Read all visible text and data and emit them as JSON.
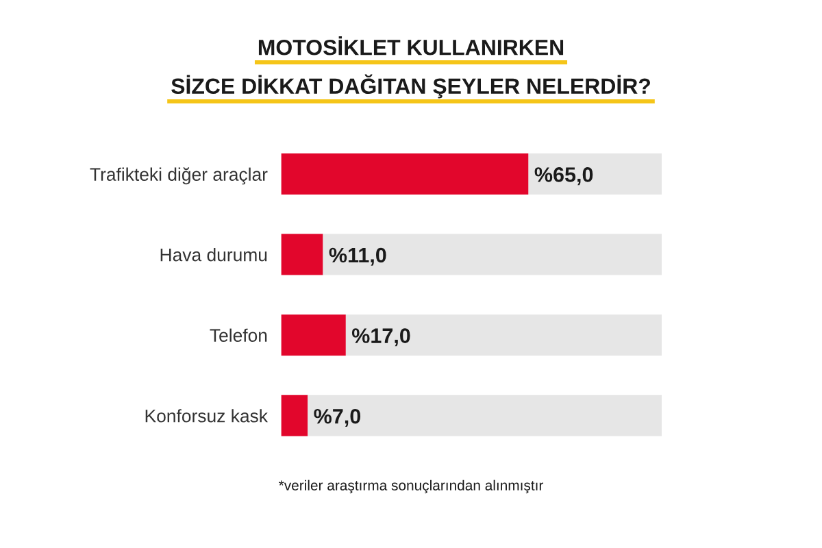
{
  "chart_data": {
    "type": "bar",
    "orientation": "horizontal",
    "stacked": true,
    "title": "MOTOSİKLET KULLANIRKEN\nSİZCE DİKKAT DAĞITAN ŞEYLER NELERDİR?",
    "categories": [
      "Trafikteki diğer araçlar",
      "Hava durumu",
      "Telefon",
      "Konforsuz kask"
    ],
    "series": [
      {
        "color": "#e2062c",
        "values": [
          65,
          11,
          17,
          7
        ],
        "value_labels": [
          "%65,0",
          "%11,0",
          "%17,0",
          "%7,0"
        ]
      },
      {
        "color": "#e6e6e6",
        "values": [
          35,
          89,
          83,
          93
        ]
      }
    ],
    "xlim": [
      0,
      100
    ],
    "tick_labels": false,
    "grid": false,
    "annotations": [
      "*veriler araştırma sonuçlarından alınmıştır"
    ]
  }
}
